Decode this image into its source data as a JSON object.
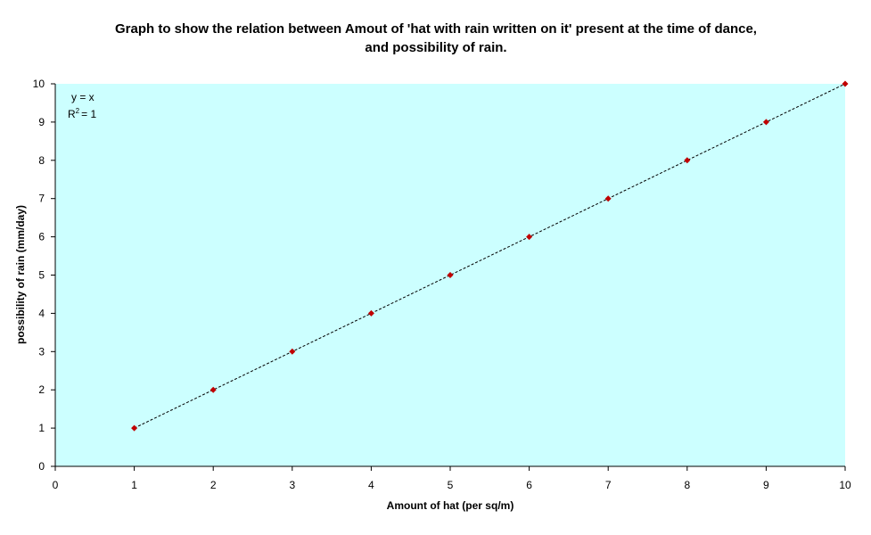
{
  "chart_data": {
    "type": "scatter",
    "title": [
      "Graph to show the relation between Amout of 'hat with rain written on it' present at the time of dance,",
      "and possibility of rain."
    ],
    "xlabel": "Amount of hat (per sq/m)",
    "ylabel": "possibility of rain (mm/day)",
    "xlim": [
      0,
      10
    ],
    "ylim": [
      0,
      10
    ],
    "x_ticks": [
      0,
      1,
      2,
      3,
      4,
      5,
      6,
      7,
      8,
      9,
      10
    ],
    "y_ticks": [
      0,
      1,
      2,
      3,
      4,
      5,
      6,
      7,
      8,
      9,
      10
    ],
    "grid": false,
    "series": [
      {
        "x": [
          1,
          2,
          3,
          4,
          5,
          6,
          7,
          8,
          9,
          10
        ],
        "y": [
          1,
          2,
          3,
          4,
          5,
          6,
          7,
          8,
          9,
          10
        ],
        "marker": "diamond",
        "color": "#C00000"
      }
    ],
    "trendline": {
      "type": "linear",
      "equation": "y = x",
      "r_squared_label": "R",
      "r_squared_exponent": "2",
      "r_squared_value": "= 1",
      "style": "dashed",
      "color": "#000000"
    },
    "plot_background": "#CCFFFF"
  }
}
